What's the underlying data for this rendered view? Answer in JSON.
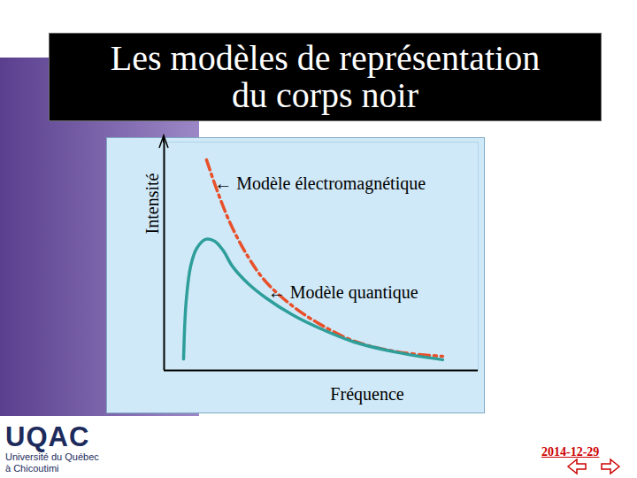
{
  "chart_data": {
    "type": "line",
    "title": "Les modèles de représentation\ndu corps noir",
    "x_label": "Fréquence",
    "y_label": "Intensité",
    "xlim": [
      0,
      100
    ],
    "ylim": [
      0,
      100
    ],
    "xticks": [],
    "yticks": [],
    "tick_labels": false,
    "grid": false,
    "series": [
      {
        "color": "#e8502a",
        "line_style": "dashdot",
        "x": [
          13.5,
          16.9,
          21.1,
          26.8,
          32.4,
          40.8,
          49.3,
          60.6,
          74.6,
          88.7
        ],
        "values": [
          92.2,
          78.7,
          64.3,
          49.6,
          38.8,
          28.3,
          20.5,
          12.8,
          8.1,
          6.2
        ]
      },
      {
        "color": "#2e9e9a",
        "line_style": "solid",
        "x": [
          6.2,
          7.0,
          8.5,
          10.4,
          13.2,
          16.1,
          18.9,
          21.7,
          26.8,
          32.4,
          40.8,
          49.3,
          60.6,
          74.6,
          88.7
        ],
        "values": [
          5.0,
          30,
          46,
          53.5,
          57.4,
          56.6,
          52.3,
          45.7,
          38,
          31.8,
          24.4,
          18.6,
          12.4,
          7.8,
          4.7
        ]
      }
    ],
    "annotations": [
      {
        "text": "← Modèle électromagnétique",
        "x": 16,
        "y": 81.8
      },
      {
        "text": "← Modèle quantique",
        "x": 33,
        "y": 34
      }
    ]
  },
  "footer": {
    "logo": "UQAC",
    "logo_lines": [
      "Université du Québec",
      "à Chicoutimi"
    ],
    "date": "2014-12-29"
  }
}
